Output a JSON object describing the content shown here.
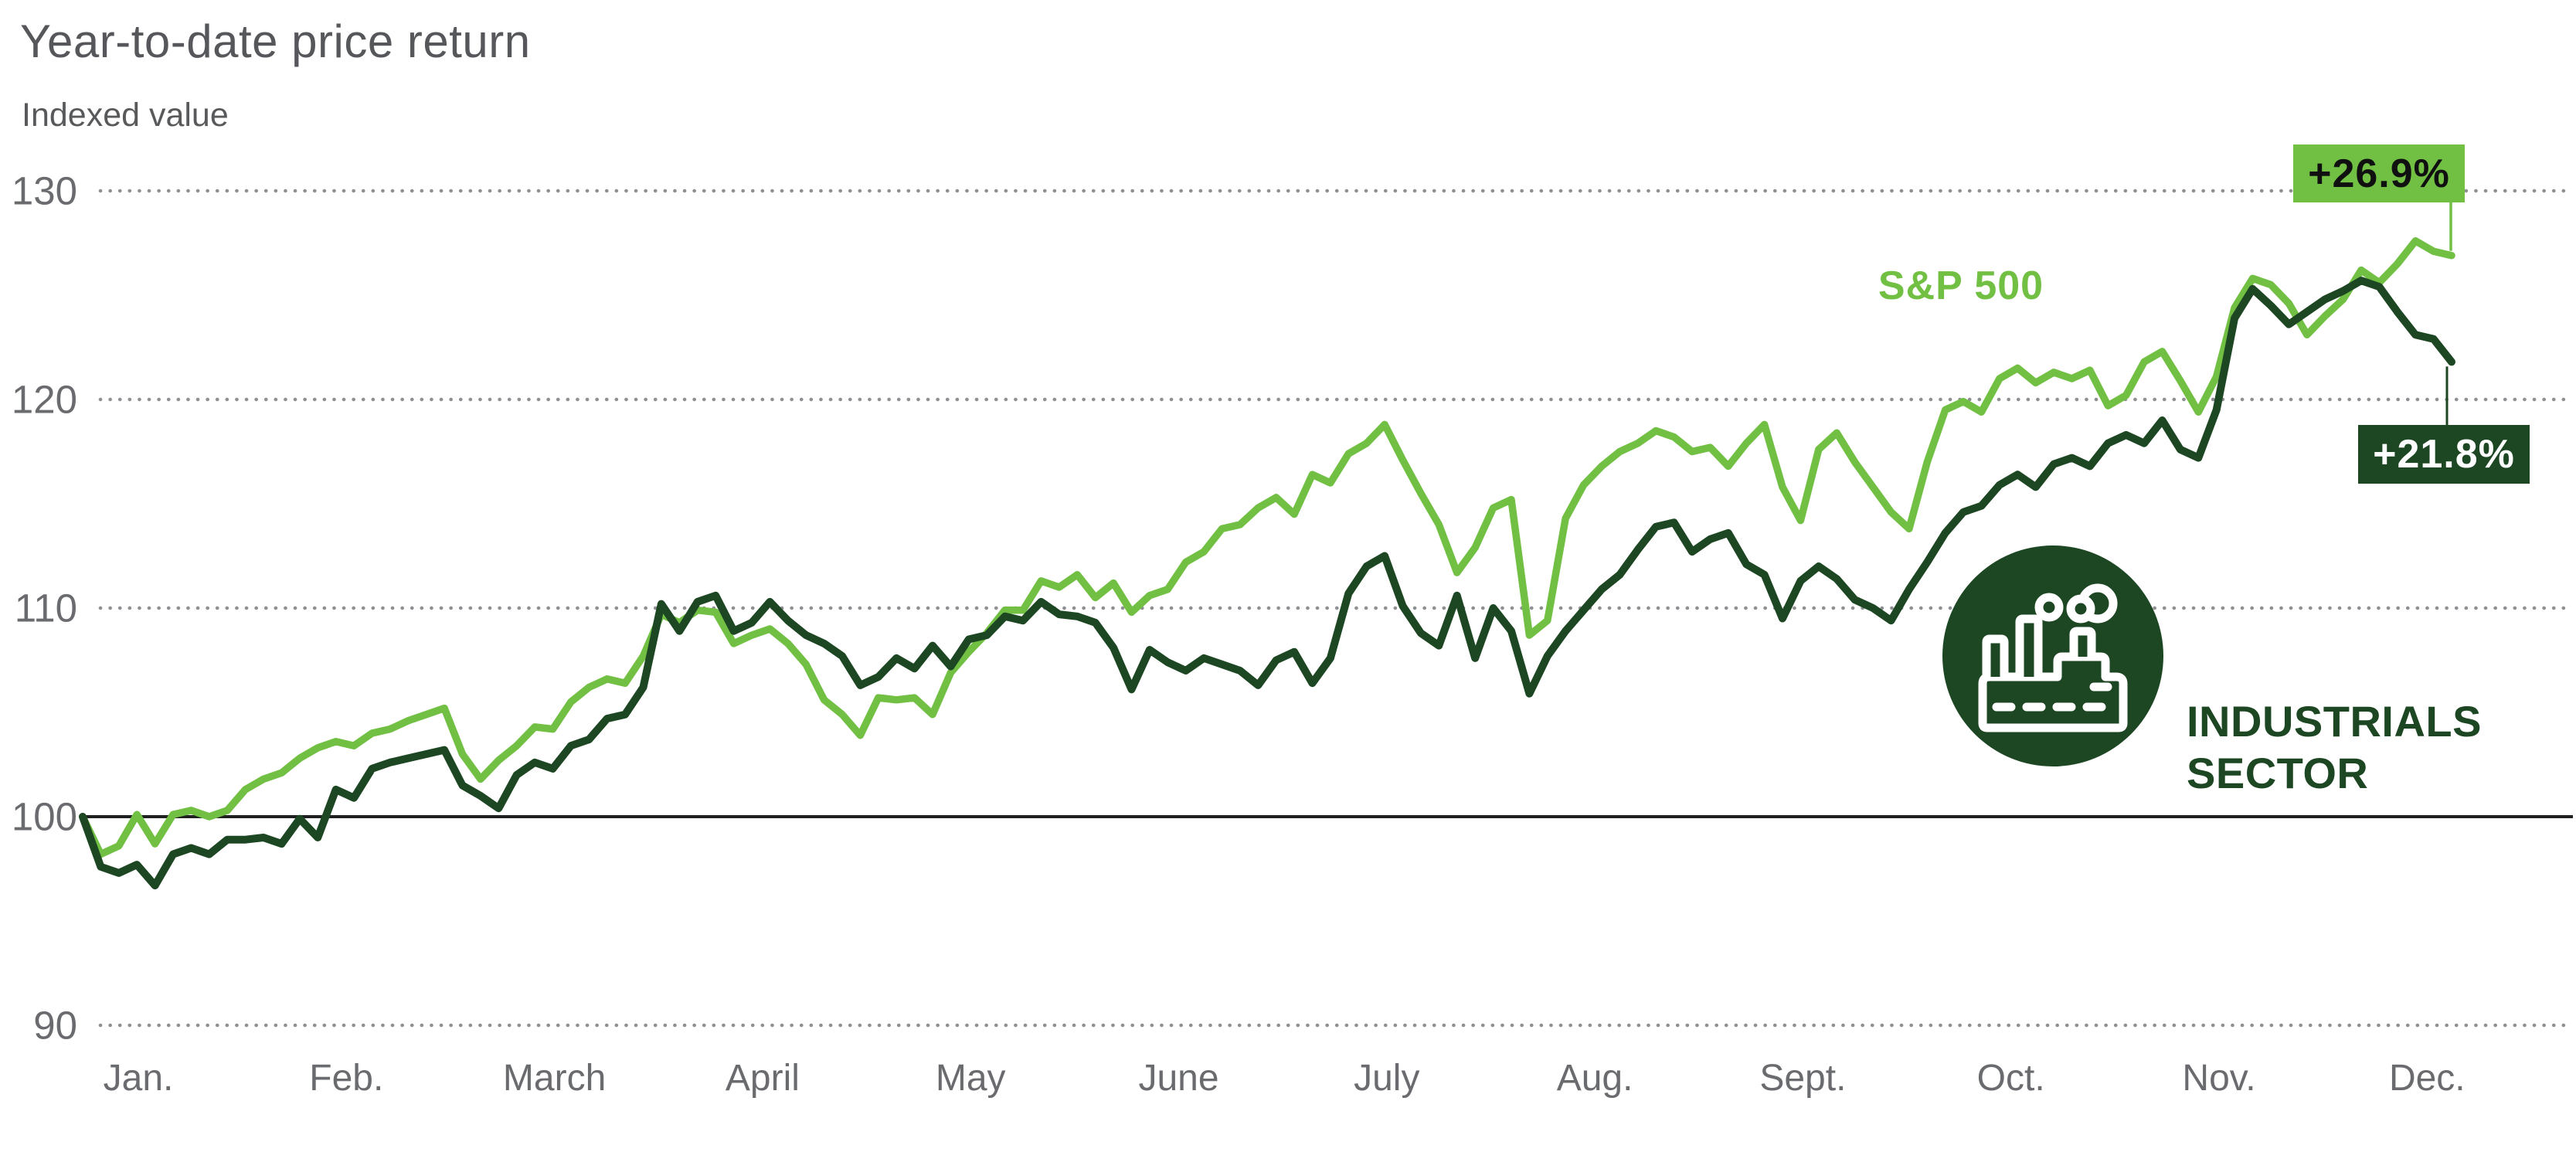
{
  "title": "Year-to-date price return",
  "subtitle": "Indexed value",
  "sp500_label": "S&P 500",
  "sector_label_line1": "INDUSTRIALS",
  "sector_label_line2": "SECTOR",
  "badges": {
    "sp500": "+26.9%",
    "industrials": "+21.8%"
  },
  "colors": {
    "sp500_line": "#71C044",
    "industrials_line": "#1D4623",
    "title_text": "#56575B",
    "axis_text": "#6A6B6E",
    "gridline_dots": "#8E9093",
    "baseline_100": "#1F2020",
    "badge_sp500_bg": "#71C044",
    "badge_sp500_text": "#101010",
    "badge_industrials_bg": "#1D4623",
    "badge_industrials_text": "#FFFFFF"
  },
  "chart_data": {
    "type": "line",
    "title": "Year-to-date price return",
    "ylabel": "Indexed value",
    "x_labels": [
      "Jan.",
      "Feb.",
      "March",
      "April",
      "May",
      "June",
      "July",
      "Aug.",
      "Sept.",
      "Oct.",
      "Nov.",
      "Dec."
    ],
    "x_range_note": "Daily indexed values, Jan 1 through Dec 31, start value = 100",
    "yticks": [
      130,
      120,
      110,
      100,
      90
    ],
    "ylim": [
      88,
      132
    ],
    "grid": "dotted horizontal gridlines, solid line at 100",
    "legend_position": "inline labels and callout badges",
    "series": [
      {
        "name": "S&P 500",
        "color": "#71C044",
        "final_return": "+26.9%",
        "values": [
          100,
          98.2,
          98.6,
          100.1,
          98.7,
          100.1,
          100.3,
          100.0,
          100.3,
          101.3,
          101.8,
          102.1,
          102.8,
          103.3,
          103.6,
          103.4,
          104.0,
          104.2,
          104.6,
          104.9,
          105.2,
          103.0,
          101.8,
          102.7,
          103.4,
          104.3,
          104.2,
          105.5,
          106.2,
          106.6,
          106.4,
          107.7,
          109.7,
          109.3,
          109.9,
          109.8,
          108.3,
          108.7,
          109.0,
          108.3,
          107.3,
          105.6,
          104.9,
          103.9,
          105.7,
          105.6,
          105.7,
          104.9,
          106.9,
          107.9,
          108.8,
          109.9,
          109.9,
          111.3,
          111.0,
          111.6,
          110.5,
          111.2,
          109.8,
          110.6,
          110.9,
          112.2,
          112.7,
          113.8,
          114.0,
          114.8,
          115.3,
          114.5,
          116.4,
          116.0,
          117.4,
          117.9,
          118.8,
          117.1,
          115.5,
          114.0,
          111.7,
          112.9,
          114.8,
          115.2,
          108.7,
          109.4,
          114.3,
          115.9,
          116.8,
          117.5,
          117.9,
          118.5,
          118.2,
          117.5,
          117.7,
          116.8,
          117.9,
          118.8,
          115.8,
          114.2,
          117.6,
          118.4,
          117.0,
          115.8,
          114.6,
          113.8,
          117.0,
          119.5,
          119.9,
          119.4,
          121.0,
          121.5,
          120.8,
          121.3,
          121.0,
          121.4,
          119.7,
          120.2,
          121.8,
          122.3,
          120.9,
          119.4,
          121.1,
          124.4,
          125.8,
          125.5,
          124.6,
          123.1,
          124.0,
          124.8,
          126.2,
          125.6,
          126.5,
          127.6,
          127.1,
          126.9
        ]
      },
      {
        "name": "Industrials sector",
        "color": "#1D4623",
        "final_return": "+21.8%",
        "values": [
          100,
          97.6,
          97.3,
          97.7,
          96.7,
          98.2,
          98.5,
          98.2,
          98.9,
          98.9,
          99.0,
          98.7,
          99.9,
          99.0,
          101.3,
          100.9,
          102.3,
          102.6,
          102.8,
          103.0,
          103.2,
          101.5,
          101.0,
          100.4,
          102.0,
          102.6,
          102.3,
          103.4,
          103.7,
          104.7,
          104.9,
          106.2,
          110.2,
          108.9,
          110.3,
          110.6,
          108.9,
          109.3,
          110.3,
          109.4,
          108.7,
          108.3,
          107.7,
          106.3,
          106.7,
          107.6,
          107.1,
          108.2,
          107.2,
          108.5,
          108.7,
          109.6,
          109.4,
          110.3,
          109.7,
          109.6,
          109.3,
          108.1,
          106.1,
          108.0,
          107.4,
          107.0,
          107.6,
          107.3,
          107.0,
          106.3,
          107.5,
          107.9,
          106.4,
          107.6,
          110.7,
          112.0,
          112.5,
          110.1,
          108.8,
          108.2,
          110.6,
          107.6,
          110.0,
          108.9,
          105.9,
          107.7,
          108.9,
          109.9,
          110.9,
          111.6,
          112.8,
          113.9,
          114.1,
          112.7,
          113.3,
          113.6,
          112.1,
          111.6,
          109.5,
          111.3,
          112.0,
          111.4,
          110.4,
          110.0,
          109.4,
          110.9,
          112.2,
          113.6,
          114.6,
          114.9,
          115.9,
          116.4,
          115.8,
          116.9,
          117.2,
          116.8,
          117.9,
          118.3,
          117.9,
          119.0,
          117.6,
          117.2,
          119.5,
          123.9,
          125.3,
          124.5,
          123.6,
          124.2,
          124.8,
          125.2,
          125.7,
          125.4,
          124.2,
          123.1,
          122.9,
          121.8
        ]
      }
    ]
  }
}
